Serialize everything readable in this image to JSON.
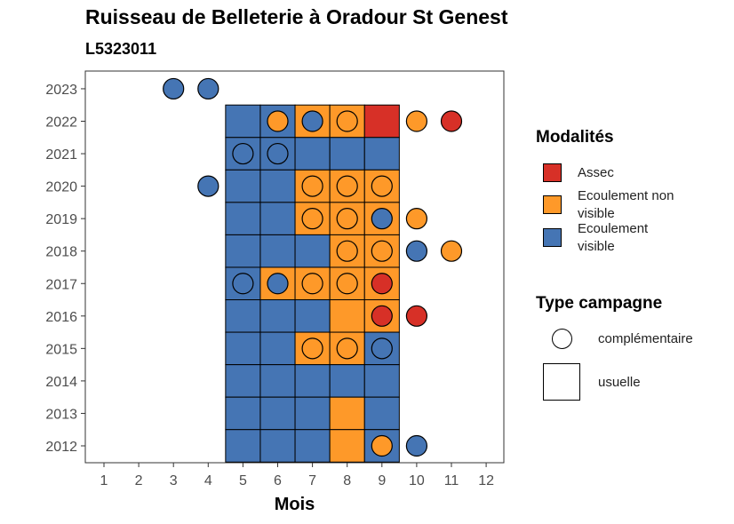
{
  "title": "Ruisseau de Belleterie à Oradour St Genest",
  "subtitle": "L5323011",
  "chart_data": {
    "type": "heatmap",
    "xlabel": "Mois",
    "ylabel": "",
    "x_ticks": [
      1,
      2,
      3,
      4,
      5,
      6,
      7,
      8,
      9,
      10,
      11,
      12
    ],
    "y_ticks": [
      2012,
      2013,
      2014,
      2015,
      2016,
      2017,
      2018,
      2019,
      2020,
      2021,
      2022,
      2023
    ],
    "xlim": [
      0.5,
      12.5
    ],
    "ylim": [
      2011.5,
      2023.5
    ],
    "grid": false,
    "legend_position": "right",
    "modalites": {
      "title": "Modalités",
      "items": [
        {
          "key": "A",
          "label": "Assec",
          "color": "#D73027"
        },
        {
          "key": "NV",
          "label": "Ecoulement non visible",
          "color": "#FE9929"
        },
        {
          "key": "V",
          "label": "Ecoulement visible",
          "color": "#4575B4"
        }
      ]
    },
    "type_campagne": {
      "title": "Type campagne",
      "items": [
        {
          "key": "complementaire",
          "label": "complémentaire",
          "shape": "circle"
        },
        {
          "key": "usuelle",
          "label": "usuelle",
          "shape": "square"
        }
      ]
    },
    "usuelle": [
      {
        "year": 2022,
        "months": [
          "V",
          "V",
          "NV",
          "NV",
          "A"
        ]
      },
      {
        "year": 2021,
        "months": [
          "V",
          "V",
          "V",
          "V",
          "V"
        ]
      },
      {
        "year": 2020,
        "months": [
          "V",
          "V",
          "NV",
          "NV",
          "NV"
        ]
      },
      {
        "year": 2019,
        "months": [
          "V",
          "V",
          "NV",
          "NV",
          "NV"
        ]
      },
      {
        "year": 2018,
        "months": [
          "V",
          "V",
          "V",
          "NV",
          "NV"
        ]
      },
      {
        "year": 2017,
        "months": [
          "V",
          "NV",
          "NV",
          "NV",
          "NV"
        ]
      },
      {
        "year": 2016,
        "months": [
          "V",
          "V",
          "V",
          "NV",
          "NV"
        ]
      },
      {
        "year": 2015,
        "months": [
          "V",
          "V",
          "NV",
          "NV",
          "V"
        ]
      },
      {
        "year": 2014,
        "months": [
          "V",
          "V",
          "V",
          "V",
          "V"
        ]
      },
      {
        "year": 2013,
        "months": [
          "V",
          "V",
          "V",
          "NV",
          "V"
        ]
      },
      {
        "year": 2012,
        "months": [
          "V",
          "V",
          "V",
          "NV",
          "V"
        ]
      }
    ],
    "usuelle_first_month": 5,
    "complementaire": [
      {
        "year": 2023,
        "month": 3,
        "value": "V"
      },
      {
        "year": 2023,
        "month": 4,
        "value": "V"
      },
      {
        "year": 2022,
        "month": 6,
        "value": "NV"
      },
      {
        "year": 2022,
        "month": 7,
        "value": "V"
      },
      {
        "year": 2022,
        "month": 8,
        "value": "NV"
      },
      {
        "year": 2022,
        "month": 10,
        "value": "NV"
      },
      {
        "year": 2022,
        "month": 11,
        "value": "A"
      },
      {
        "year": 2021,
        "month": 5,
        "value": "V"
      },
      {
        "year": 2021,
        "month": 6,
        "value": "V"
      },
      {
        "year": 2020,
        "month": 4,
        "value": "V"
      },
      {
        "year": 2020,
        "month": 7,
        "value": "NV"
      },
      {
        "year": 2020,
        "month": 8,
        "value": "NV"
      },
      {
        "year": 2020,
        "month": 9,
        "value": "NV"
      },
      {
        "year": 2019,
        "month": 7,
        "value": "NV"
      },
      {
        "year": 2019,
        "month": 8,
        "value": "NV"
      },
      {
        "year": 2019,
        "month": 9,
        "value": "V"
      },
      {
        "year": 2019,
        "month": 10,
        "value": "NV"
      },
      {
        "year": 2018,
        "month": 8,
        "value": "NV"
      },
      {
        "year": 2018,
        "month": 9,
        "value": "NV"
      },
      {
        "year": 2018,
        "month": 10,
        "value": "V"
      },
      {
        "year": 2018,
        "month": 11,
        "value": "NV"
      },
      {
        "year": 2017,
        "month": 5,
        "value": "V"
      },
      {
        "year": 2017,
        "month": 6,
        "value": "V"
      },
      {
        "year": 2017,
        "month": 7,
        "value": "NV"
      },
      {
        "year": 2017,
        "month": 8,
        "value": "NV"
      },
      {
        "year": 2017,
        "month": 9,
        "value": "A"
      },
      {
        "year": 2016,
        "month": 9,
        "value": "A"
      },
      {
        "year": 2016,
        "month": 10,
        "value": "A"
      },
      {
        "year": 2015,
        "month": 7,
        "value": "NV"
      },
      {
        "year": 2015,
        "month": 8,
        "value": "NV"
      },
      {
        "year": 2015,
        "month": 9,
        "value": "V"
      },
      {
        "year": 2012,
        "month": 9,
        "value": "NV"
      },
      {
        "year": 2012,
        "month": 10,
        "value": "V"
      }
    ]
  }
}
